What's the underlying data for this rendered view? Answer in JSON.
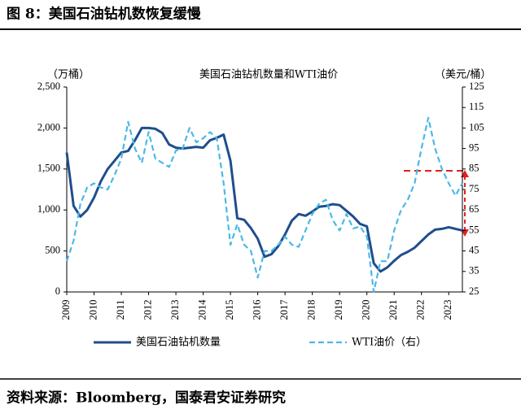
{
  "header": {
    "title": "图 8：美国石油钻机数恢复缓慢"
  },
  "footer": {
    "source": "资料来源：Bloomberg，国泰君安证券研究"
  },
  "chart_data": {
    "type": "line",
    "title": "美国石油钻机数量和WTI油价",
    "y_label": "（万桶）",
    "y2_label": "（美元/桶）",
    "x": [
      2009,
      2009.25,
      2009.5,
      2009.75,
      2010,
      2010.25,
      2010.5,
      2010.75,
      2011,
      2011.25,
      2011.5,
      2011.75,
      2012,
      2012.25,
      2012.5,
      2012.75,
      2013,
      2013.25,
      2013.5,
      2013.75,
      2014,
      2014.25,
      2014.5,
      2014.75,
      2015,
      2015.25,
      2015.5,
      2015.75,
      2016,
      2016.25,
      2016.5,
      2016.75,
      2017,
      2017.25,
      2017.5,
      2017.75,
      2018,
      2018.25,
      2018.5,
      2018.75,
      2019,
      2019.25,
      2019.5,
      2019.75,
      2020,
      2020.25,
      2020.5,
      2020.75,
      2021,
      2021.25,
      2021.5,
      2021.75,
      2022,
      2022.25,
      2022.5,
      2022.75,
      2023,
      2023.25,
      2023.5
    ],
    "xlim": [
      2009,
      2023.5
    ],
    "xticks": [
      2009,
      2010,
      2011,
      2012,
      2013,
      2014,
      2015,
      2016,
      2017,
      2018,
      2019,
      2020,
      2021,
      2022,
      2023
    ],
    "ylim": [
      0,
      2500
    ],
    "yticks": [
      0,
      500,
      {
        "value": 1000,
        "label": "1,000"
      },
      {
        "value": 1500,
        "label": "1,500"
      },
      {
        "value": 2000,
        "label": "2,000"
      },
      {
        "value": 2500,
        "label": "2,500"
      }
    ],
    "y2lim": [
      25,
      125
    ],
    "y2ticks": [
      25,
      35,
      45,
      55,
      65,
      75,
      85,
      95,
      105,
      115,
      125
    ],
    "series": [
      {
        "name": "美国石油钻机数量",
        "color": "#1f4e8c",
        "values": [
          1700,
          1050,
          920,
          1000,
          1150,
          1350,
          1500,
          1600,
          1700,
          1720,
          1850,
          2000,
          2000,
          1990,
          1940,
          1800,
          1760,
          1750,
          1760,
          1770,
          1760,
          1850,
          1880,
          1920,
          1600,
          900,
          880,
          780,
          650,
          430,
          460,
          560,
          700,
          870,
          950,
          930,
          980,
          1040,
          1050,
          1070,
          1060,
          990,
          920,
          830,
          800,
          350,
          250,
          300,
          380,
          450,
          490,
          540,
          620,
          700,
          760,
          770,
          790,
          770,
          750
        ]
      },
      {
        "name": "WTI油价（右）",
        "color": "#4ab9e8",
        "axis": "y2",
        "dashed": true,
        "values": [
          40,
          50,
          68,
          76,
          78,
          76,
          75,
          82,
          90,
          108,
          95,
          88,
          103,
          90,
          88,
          86,
          94,
          95,
          105,
          98,
          100,
          103,
          100,
          78,
          48,
          58,
          48,
          45,
          32,
          45,
          45,
          48,
          52,
          48,
          47,
          55,
          63,
          68,
          70,
          60,
          55,
          63,
          56,
          57,
          52,
          25,
          40,
          40,
          55,
          65,
          70,
          78,
          95,
          110,
          95,
          85,
          78,
          72,
          78
        ]
      }
    ]
  }
}
